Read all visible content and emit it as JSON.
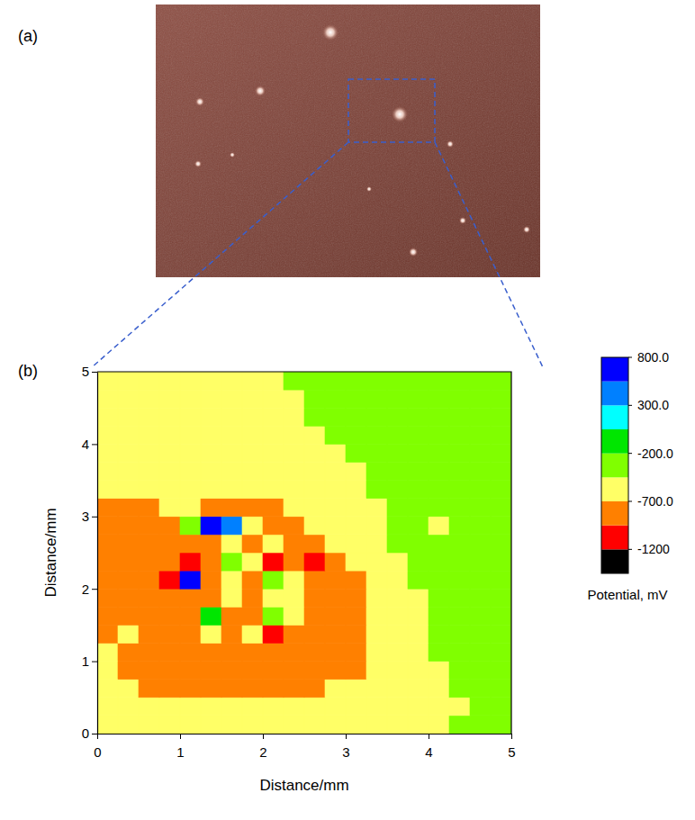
{
  "panel_a": {
    "label": "(a)"
  },
  "chart_data": {
    "type": "contour",
    "panel_label": "(b)",
    "xlabel": "Distance/mm",
    "ylabel": "Distance/mm",
    "xlim": [
      0,
      5
    ],
    "ylim": [
      0,
      5
    ],
    "xticks": [
      0,
      1,
      2,
      3,
      4,
      5
    ],
    "yticks": [
      0,
      1,
      2,
      3,
      4,
      5
    ],
    "x": [
      0.125,
      0.375,
      0.625,
      0.875,
      1.125,
      1.375,
      1.625,
      1.875,
      2.125,
      2.375,
      2.625,
      2.875,
      3.125,
      3.375,
      3.625,
      3.875,
      4.125,
      4.375,
      4.625,
      4.875
    ],
    "y": [
      0.125,
      0.375,
      0.625,
      0.875,
      1.125,
      1.375,
      1.625,
      1.875,
      2.125,
      2.375,
      2.625,
      2.875,
      3.125,
      3.375,
      3.625,
      3.875,
      4.125,
      4.375,
      4.625,
      4.875
    ],
    "z": [
      [
        -600,
        -600,
        -600,
        -600,
        -600,
        -600,
        -600,
        -600,
        -600,
        -600,
        -600,
        -600,
        -600,
        -600,
        -600,
        -600,
        -600,
        -350,
        -350,
        -350
      ],
      [
        -600,
        -600,
        -600,
        -600,
        -600,
        -600,
        -600,
        -600,
        -600,
        -600,
        -600,
        -600,
        -600,
        -600,
        -600,
        -600,
        -600,
        -600,
        -350,
        -350
      ],
      [
        -600,
        -600,
        -820,
        -820,
        -820,
        -820,
        -820,
        -820,
        -820,
        -820,
        -820,
        -600,
        -600,
        -600,
        -600,
        -600,
        -600,
        -350,
        -350,
        -350
      ],
      [
        -600,
        -820,
        -820,
        -820,
        -820,
        -820,
        -820,
        -820,
        -820,
        -820,
        -820,
        -820,
        -820,
        -600,
        -600,
        -600,
        -600,
        -350,
        -350,
        -350
      ],
      [
        -600,
        -820,
        -820,
        -820,
        -820,
        -820,
        -820,
        -820,
        -820,
        -820,
        -820,
        -820,
        -820,
        -600,
        -600,
        -600,
        -350,
        -350,
        -350,
        -350
      ],
      [
        -820,
        -600,
        -820,
        -820,
        -820,
        -600,
        -820,
        -600,
        -1050,
        -820,
        -820,
        -820,
        -820,
        -600,
        -600,
        -600,
        -350,
        -350,
        -350,
        -350
      ],
      [
        -820,
        -820,
        -820,
        -820,
        -820,
        -150,
        -820,
        -820,
        -350,
        -600,
        -820,
        -820,
        -820,
        -600,
        -600,
        -600,
        -350,
        -350,
        -350,
        -350
      ],
      [
        -820,
        -820,
        -820,
        -820,
        -820,
        -820,
        -600,
        -820,
        -600,
        -600,
        -820,
        -820,
        -820,
        -600,
        -600,
        -600,
        -350,
        -350,
        -350,
        -350
      ],
      [
        -820,
        -820,
        -820,
        -1050,
        700,
        -820,
        -600,
        -820,
        -350,
        -600,
        -820,
        -820,
        -820,
        -600,
        -600,
        -350,
        -350,
        -350,
        -350,
        -350
      ],
      [
        -820,
        -820,
        -820,
        -820,
        -1050,
        -820,
        -350,
        -600,
        -1050,
        -820,
        -1050,
        -820,
        -600,
        -600,
        -600,
        -350,
        -350,
        -350,
        -350,
        -350
      ],
      [
        -820,
        -820,
        -820,
        -820,
        -820,
        -820,
        -600,
        -820,
        -600,
        -820,
        -820,
        -600,
        -600,
        -600,
        -350,
        -350,
        -350,
        -350,
        -350,
        -350
      ],
      [
        -820,
        -820,
        -820,
        -820,
        -350,
        700,
        400,
        -600,
        -820,
        -820,
        -600,
        -600,
        -600,
        -600,
        -350,
        -350,
        -600,
        -350,
        -350,
        -350
      ],
      [
        -820,
        -820,
        -820,
        -600,
        -600,
        -820,
        -820,
        -820,
        -820,
        -600,
        -600,
        -600,
        -600,
        -600,
        -350,
        -350,
        -350,
        -350,
        -350,
        -350
      ],
      [
        -600,
        -600,
        -600,
        -600,
        -600,
        -600,
        -600,
        -600,
        -600,
        -600,
        -600,
        -600,
        -600,
        -350,
        -350,
        -350,
        -350,
        -350,
        -350,
        -350
      ],
      [
        -600,
        -600,
        -600,
        -600,
        -600,
        -600,
        -600,
        -600,
        -600,
        -600,
        -600,
        -600,
        -600,
        -350,
        -350,
        -350,
        -350,
        -350,
        -350,
        -350
      ],
      [
        -600,
        -600,
        -600,
        -600,
        -600,
        -600,
        -600,
        -600,
        -600,
        -600,
        -600,
        -600,
        -350,
        -350,
        -350,
        -350,
        -350,
        -350,
        -350,
        -350
      ],
      [
        -600,
        -600,
        -600,
        -600,
        -600,
        -600,
        -600,
        -600,
        -600,
        -600,
        -600,
        -350,
        -350,
        -350,
        -350,
        -350,
        -350,
        -350,
        -350,
        -350
      ],
      [
        -600,
        -600,
        -600,
        -600,
        -600,
        -600,
        -600,
        -600,
        -600,
        -600,
        -350,
        -350,
        -350,
        -350,
        -350,
        -350,
        -350,
        -350,
        -350,
        -350
      ],
      [
        -600,
        -600,
        -600,
        -600,
        -600,
        -600,
        -600,
        -600,
        -600,
        -600,
        -350,
        -350,
        -350,
        -350,
        -350,
        -350,
        -350,
        -350,
        -350,
        -350
      ],
      [
        -600,
        -600,
        -600,
        -600,
        -600,
        -600,
        -600,
        -600,
        -600,
        -350,
        -350,
        -350,
        -350,
        -350,
        -350,
        -350,
        -350,
        -350,
        -350,
        -350
      ]
    ],
    "colors": [
      "#000000",
      "#ff0000",
      "#ff8000",
      "#ffff66",
      "#80ff00",
      "#00e600",
      "#00ffff",
      "#0080ff",
      "#0000ff"
    ],
    "colorbar": {
      "label": "Potential, mV",
      "range": [
        -1450,
        800
      ],
      "levels": [
        -1450,
        -1200,
        -950,
        -700,
        -450,
        -200,
        50,
        300,
        550,
        800
      ],
      "ticks": [
        {
          "value": 800,
          "label": "800.0"
        },
        {
          "value": 300,
          "label": "300.0"
        },
        {
          "value": -200,
          "label": "-200.0"
        },
        {
          "value": -700,
          "label": "-700.0"
        },
        {
          "value": -1200,
          "label": "-1200"
        }
      ]
    }
  }
}
